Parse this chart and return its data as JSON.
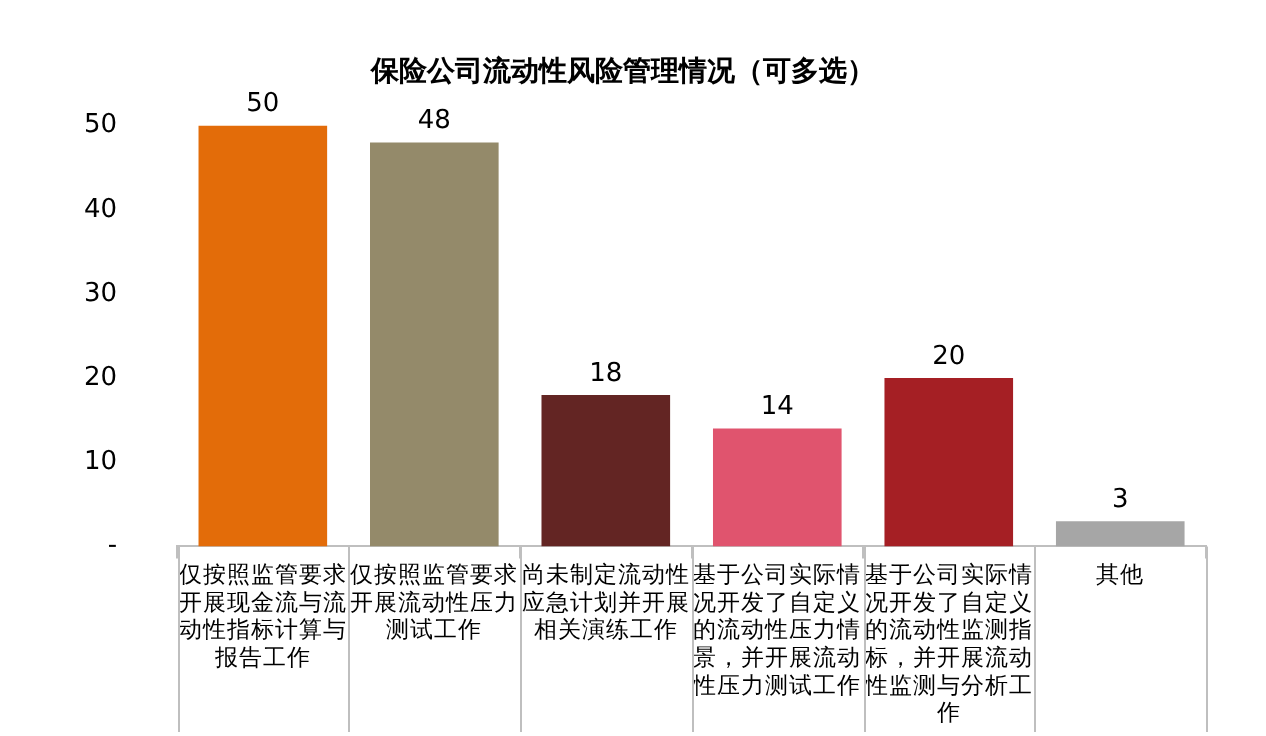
{
  "chart_data": {
    "type": "bar",
    "title": "保险公司流动性风险管理情况（可多选）",
    "categories": [
      "仅按照监管要求开展现金流与流动性指标计算与报告工作",
      "仅按照监管要求开展流动性压力测试工作",
      "尚未制定流动性应急计划并开展相关演练工作",
      "基于公司实际情况开发了自定义的流动性压力情景，并开展流动性压力测试工作",
      "基于公司实际情况开发了自定义的流动性监测指标，并开展流动性监测与分析工作",
      "其他"
    ],
    "values": [
      50,
      48,
      18,
      14,
      20,
      3
    ],
    "colors": [
      "#e36c09",
      "#948a6a",
      "#632523",
      "#e0546e",
      "#a51f24",
      "#a6a6a6"
    ],
    "ylim": [
      0,
      50
    ],
    "yticks": [
      {
        "value": 0,
        "label": "-"
      },
      10,
      20,
      30,
      40,
      50
    ],
    "data_labels": true,
    "grid": false,
    "legend": false
  }
}
